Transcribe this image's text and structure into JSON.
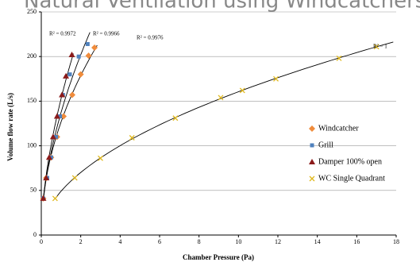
{
  "chart_data": {
    "type": "scatter",
    "title": "Natural Ventilation using Windcatchers",
    "x_label": "Chamber Pressure (Pa)",
    "y_label": "Volume flow rate (L/s)",
    "xlim": [
      0,
      18
    ],
    "xticks": [
      0,
      2,
      4,
      6,
      8,
      10,
      12,
      14,
      16,
      18
    ],
    "ylim": [
      0,
      250
    ],
    "yticks": [
      0,
      50,
      100,
      150,
      200,
      250
    ],
    "grid": true,
    "legend": "right",
    "annotations": [
      "R² = 0.9972",
      "R² = 0.9966",
      "R² = 0.9976",
      "R² = 1"
    ],
    "series": [
      {
        "name": "Windcatcher",
        "color": "#f08c3c",
        "marker": "diamond",
        "x": [
          0.1,
          0.25,
          0.5,
          0.8,
          1.13,
          1.57,
          2.0,
          2.4,
          2.7
        ],
        "values": [
          41,
          64,
          87,
          110,
          133,
          157,
          180,
          201,
          210
        ]
      },
      {
        "name": "Grill",
        "color": "#4f81bd",
        "marker": "square",
        "x": [
          0.1,
          0.3,
          0.5,
          0.75,
          0.95,
          1.1,
          1.45,
          1.9,
          2.35
        ],
        "values": [
          41,
          64,
          87,
          110,
          133,
          157,
          180,
          200,
          214
        ]
      },
      {
        "name": "Damper 100% open",
        "color": "#8b1a1a",
        "marker": "triangle",
        "x": [
          0.1,
          0.25,
          0.4,
          0.6,
          0.8,
          1.05,
          1.25,
          1.55
        ],
        "values": [
          41,
          64,
          87,
          110,
          133,
          157,
          178,
          202
        ]
      },
      {
        "name": "WC Single Quadrant",
        "color": "#e0b81c",
        "marker": "x",
        "x": [
          0.7,
          1.7,
          3.0,
          4.6,
          6.8,
          9.1,
          10.2,
          11.9,
          15.1,
          17.0
        ],
        "values": [
          41,
          64,
          86,
          109,
          131,
          154,
          162,
          175,
          198,
          211
        ]
      }
    ]
  }
}
